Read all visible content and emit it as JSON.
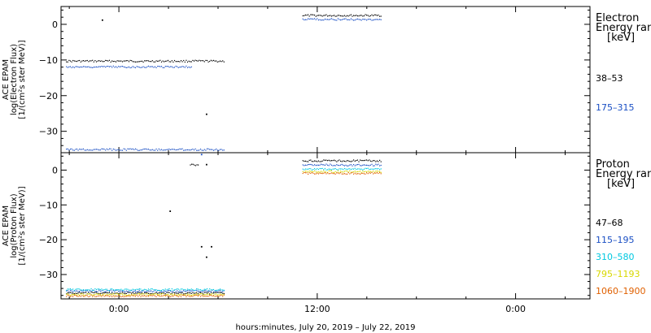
{
  "chart_data": [
    {
      "type": "scatter",
      "panel": "electron",
      "ylabel_lines": [
        "ACE EPAM",
        "log(Electron Flux)",
        "[1/(cm²s ster MeV)]"
      ],
      "ylim": [
        -36,
        5
      ],
      "yticks": [
        0,
        -10,
        -20,
        -30
      ],
      "ytick_labels": [
        "0",
        "−10",
        "−20",
        "−30"
      ],
      "legend_title_lines": [
        "Electron",
        "Energy ran",
        "[keV]"
      ],
      "series": [
        {
          "name": "38–53",
          "color": "#000000",
          "segments": [
            {
              "x": [
                -3.2,
                6.4
              ],
              "y": -10.2
            },
            {
              "x": [
                11.1,
                15.9
              ],
              "y": 2.6
            }
          ],
          "isolated": [
            [
              -1.0,
              1.2
            ],
            [
              5.3,
              -25.2
            ]
          ]
        },
        {
          "name": "175–315",
          "color": "#1a4fc4",
          "segments": [
            {
              "x": [
                -3.2,
                4.4
              ],
              "y": -11.8
            },
            {
              "x": [
                -3.2,
                6.4
              ],
              "y": -35.0
            },
            {
              "x": [
                11.1,
                15.9
              ],
              "y": 1.5
            }
          ],
          "isolated": [
            [
              5.0,
              -36.5
            ]
          ]
        }
      ]
    },
    {
      "type": "scatter",
      "panel": "proton",
      "ylabel_lines": [
        "ACE EPAM",
        "log(Proton Flux)",
        "[1/(cm²s ster MeV)]"
      ],
      "ylim": [
        -37,
        5
      ],
      "yticks": [
        0,
        -10,
        -20,
        -30
      ],
      "ytick_labels": [
        "0",
        "−10",
        "−20",
        "−30"
      ],
      "legend_title_lines": [
        "Proton",
        "Energy ran",
        "[keV]"
      ],
      "series": [
        {
          "name": "47–68",
          "color": "#000000",
          "segments": [
            {
              "x": [
                -3.2,
                6.4
              ],
              "y": -35.2
            },
            {
              "x": [
                11.1,
                15.9
              ],
              "y": 2.8
            },
            {
              "x": [
                4.3,
                4.8
              ],
              "y": 1.6
            }
          ],
          "isolated": [
            [
              3.1,
              -11.8
            ],
            [
              5.0,
              -22.0
            ],
            [
              5.3,
              -25.0
            ],
            [
              5.6,
              -22.0
            ],
            [
              5.3,
              1.6
            ]
          ]
        },
        {
          "name": "115–195",
          "color": "#1a4fc4",
          "segments": [
            {
              "x": [
                -3.2,
                6.4
              ],
              "y": -34.6
            },
            {
              "x": [
                11.1,
                15.9
              ],
              "y": 1.6
            }
          ],
          "isolated": []
        },
        {
          "name": "310–580",
          "color": "#00c8e0",
          "segments": [
            {
              "x": [
                -3.2,
                6.4
              ],
              "y": -34.2
            },
            {
              "x": [
                11.1,
                15.9
              ],
              "y": 0.4
            }
          ],
          "isolated": []
        },
        {
          "name": "795–1193",
          "color": "#d8d800",
          "segments": [
            {
              "x": [
                -3.2,
                6.4
              ],
              "y": -35.6
            },
            {
              "x": [
                11.1,
                15.9
              ],
              "y": -0.3
            }
          ],
          "isolated": []
        },
        {
          "name": "1060–1900",
          "color": "#e06000",
          "segments": [
            {
              "x": [
                -3.2,
                6.4
              ],
              "y": -36.0
            },
            {
              "x": [
                11.1,
                15.9
              ],
              "y": -0.8
            }
          ],
          "isolated": []
        }
      ]
    }
  ],
  "x_axis": {
    "xlim": [
      -3.5,
      28.5
    ],
    "ticks": [
      0,
      12,
      24
    ],
    "tick_labels": [
      "0:00",
      "12:00",
      "0:00"
    ],
    "minor_step": 3,
    "xlabel": "hours:minutes, July 20, 2019 – July 22, 2019"
  }
}
